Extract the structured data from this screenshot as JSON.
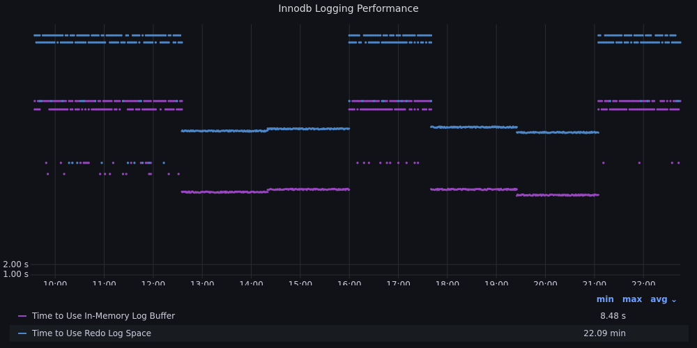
{
  "panel": {
    "title": "Innodb Logging Performance"
  },
  "legend": {
    "headers": [
      "min",
      "max",
      "avg"
    ],
    "rows": [
      {
        "name": "Time to Use In-Memory Log Buffer",
        "value": "8.48 s",
        "color": "#9a46c3"
      },
      {
        "name": "Time to Use Redo Log Space",
        "value": "22.09 min",
        "color": "#4b87cb"
      }
    ]
  },
  "chart_data": {
    "type": "scatter",
    "title": "Innodb Logging Performance",
    "xlabel": "",
    "ylabel": "",
    "x_tick_labels": [
      "10:00",
      "11:00",
      "12:00",
      "13:00",
      "14:00",
      "15:00",
      "16:00",
      "17:00",
      "18:00",
      "19:00",
      "20:00",
      "21:00",
      "22:00"
    ],
    "y_tick_labels": [
      "2.00 s",
      "1.00 s"
    ],
    "x_range": [
      "09:30",
      "22:45"
    ],
    "scale": "log",
    "grid": true,
    "legend_position": "bottom",
    "colors": {
      "buffer": "#9a46c3",
      "redo": "#4b87cb"
    },
    "series": [
      {
        "name": "Time to Use In-Memory Log Buffer",
        "color": "#9a46c3",
        "segments": [
          {
            "from": "09:35",
            "to": "12:35",
            "pattern": "scattered",
            "levels_s": [
              180,
              140,
              28,
              20
            ]
          },
          {
            "from": "12:35",
            "to": "14:20",
            "pattern": "line",
            "level_s": 11.6
          },
          {
            "from": "14:20",
            "to": "16:00",
            "pattern": "line",
            "level_s": 12.6
          },
          {
            "from": "16:00",
            "to": "17:40",
            "pattern": "scattered",
            "levels_s": [
              180,
              140,
              28
            ]
          },
          {
            "from": "17:40",
            "to": "19:25",
            "pattern": "line",
            "level_s": 12.6
          },
          {
            "from": "19:25",
            "to": "21:05",
            "pattern": "line",
            "level_s": 10.6
          },
          {
            "from": "21:05",
            "to": "22:45",
            "pattern": "scattered",
            "levels_s": [
              180,
              140,
              28
            ]
          }
        ]
      },
      {
        "name": "Time to Use Redo Log Space",
        "color": "#4b87cb",
        "segments": [
          {
            "from": "09:35",
            "to": "12:35",
            "pattern": "scattered",
            "levels_s": [
              1300,
              1050,
              180,
              28
            ]
          },
          {
            "from": "12:35",
            "to": "14:20",
            "pattern": "line",
            "level_s": 73
          },
          {
            "from": "14:20",
            "to": "16:00",
            "pattern": "line",
            "level_s": 78
          },
          {
            "from": "16:00",
            "to": "17:40",
            "pattern": "scattered",
            "levels_s": [
              1300,
              1050,
              180
            ]
          },
          {
            "from": "17:40",
            "to": "19:25",
            "pattern": "line",
            "level_s": 82
          },
          {
            "from": "19:25",
            "to": "21:05",
            "pattern": "line",
            "level_s": 70
          },
          {
            "from": "21:05",
            "to": "22:45",
            "pattern": "scattered",
            "levels_s": [
              1300,
              1050,
              180
            ]
          }
        ]
      }
    ]
  }
}
